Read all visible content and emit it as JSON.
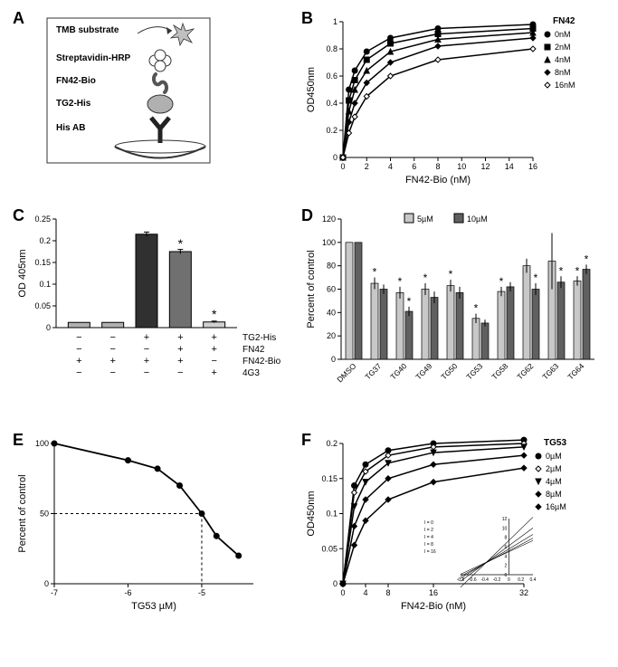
{
  "panels": {
    "A": {
      "label": "A",
      "labels": {
        "tmb": "TMB substrate",
        "strep": "Streptavidin-HRP",
        "fn42": "FN42-Bio",
        "tg2": "TG2-His",
        "his": "His AB"
      },
      "colors": {
        "border": "#333333",
        "fill_light": "#d0d0d0",
        "fill_mid": "#a0a0a0",
        "fill_dark": "#606060"
      }
    },
    "B": {
      "label": "B",
      "type": "line",
      "xlabel": "FN42-Bio (nM)",
      "ylabel": "OD450nm",
      "xlim": [
        0,
        16
      ],
      "ylim": [
        0,
        1.0
      ],
      "xticks": [
        0,
        2,
        4,
        6,
        8,
        10,
        12,
        14,
        16
      ],
      "yticks": [
        0,
        0.2,
        0.4,
        0.6,
        0.8,
        1.0
      ],
      "legend_title": "FN42",
      "series": [
        {
          "name": "0nM",
          "marker": "circle",
          "color": "#000000",
          "x": [
            0,
            0.5,
            1,
            2,
            4,
            8,
            16
          ],
          "y": [
            0,
            0.5,
            0.64,
            0.78,
            0.88,
            0.95,
            0.98
          ]
        },
        {
          "name": "2nM",
          "marker": "square",
          "color": "#000000",
          "x": [
            0,
            0.5,
            1,
            2,
            4,
            8,
            16
          ],
          "y": [
            0,
            0.42,
            0.57,
            0.72,
            0.84,
            0.91,
            0.95
          ]
        },
        {
          "name": "4nM",
          "marker": "triangle",
          "color": "#000000",
          "x": [
            0,
            0.5,
            1,
            2,
            4,
            8,
            16
          ],
          "y": [
            0,
            0.34,
            0.5,
            0.64,
            0.78,
            0.87,
            0.92
          ]
        },
        {
          "name": "8nM",
          "marker": "diamond",
          "color": "#000000",
          "x": [
            0,
            0.5,
            1,
            2,
            4,
            8,
            16
          ],
          "y": [
            0,
            0.26,
            0.4,
            0.55,
            0.7,
            0.82,
            0.88
          ]
        },
        {
          "name": "16nM",
          "marker": "diamond-open",
          "color": "#000000",
          "x": [
            0,
            0.5,
            1,
            2,
            4,
            8,
            16
          ],
          "y": [
            0,
            0.18,
            0.3,
            0.45,
            0.6,
            0.72,
            0.8
          ]
        }
      ]
    },
    "C": {
      "label": "C",
      "type": "bar",
      "ylabel": "OD 405nm",
      "ylim": [
        0,
        0.25
      ],
      "yticks": [
        0,
        0.05,
        0.1,
        0.15,
        0.2,
        0.25
      ],
      "bars": [
        {
          "y": 0.012,
          "err": 0,
          "color": "#b0b0b0",
          "star": false
        },
        {
          "y": 0.012,
          "err": 0,
          "color": "#b0b0b0",
          "star": false
        },
        {
          "y": 0.215,
          "err": 0.005,
          "color": "#303030",
          "star": false
        },
        {
          "y": 0.175,
          "err": 0.005,
          "color": "#707070",
          "star": true
        },
        {
          "y": 0.013,
          "err": 0.002,
          "color": "#d0d0d0",
          "star": true
        }
      ],
      "row_labels": [
        "TG2-His",
        "FN42",
        "FN42-Bio",
        "4G3"
      ],
      "matrix": [
        [
          "−",
          "−",
          "+",
          "+",
          "+"
        ],
        [
          "−",
          "−",
          "−",
          "+",
          "+"
        ],
        [
          "+",
          "+",
          "+",
          "+",
          "−"
        ],
        [
          "−",
          "−",
          "−",
          "−",
          "+"
        ]
      ]
    },
    "D": {
      "label": "D",
      "type": "grouped-bar",
      "ylabel": "Percent of control",
      "ylim": [
        0,
        120
      ],
      "yticks": [
        0,
        20,
        40,
        60,
        80,
        100,
        120
      ],
      "categories": [
        "DMSO",
        "TG37",
        "TG40",
        "TG49",
        "TG50",
        "TG53",
        "TG58",
        "TG62",
        "TG63",
        "TG64"
      ],
      "legend": [
        {
          "label": "5µM",
          "color": "#c8c8c8"
        },
        {
          "label": "10µM",
          "color": "#606060"
        }
      ],
      "series5": [
        100,
        65,
        57,
        60,
        63,
        35,
        58,
        80,
        84,
        67
      ],
      "series10": [
        100,
        60,
        41,
        53,
        57,
        31,
        62,
        60,
        66,
        77
      ],
      "err5": [
        0,
        5,
        5,
        5,
        5,
        4,
        4,
        6,
        24,
        4
      ],
      "err10": [
        0,
        4,
        4,
        5,
        5,
        3,
        4,
        5,
        5,
        4
      ],
      "stars5": [
        false,
        true,
        true,
        true,
        true,
        true,
        true,
        false,
        false,
        true
      ],
      "stars10": [
        false,
        false,
        true,
        false,
        false,
        false,
        false,
        true,
        true,
        true
      ]
    },
    "E": {
      "label": "E",
      "type": "line",
      "xlabel": "TG53    µM)",
      "ylabel": "Percent of control",
      "xlim": [
        -7,
        -4.3
      ],
      "ylim": [
        0,
        100
      ],
      "xticks": [
        -7,
        -6,
        -5
      ],
      "yticks": [
        0,
        50,
        100
      ],
      "points_x": [
        -7.0,
        -6.0,
        -5.6,
        -5.3,
        -5.0,
        -4.8,
        -4.5
      ],
      "points_y": [
        100,
        88,
        82,
        70,
        50,
        34,
        20
      ],
      "ic50_x": -5.0,
      "ic50_y": 50,
      "color": "#000000"
    },
    "F": {
      "label": "F",
      "type": "line",
      "xlabel": "FN42-Bio (nM)",
      "ylabel": "OD450nm",
      "xlim": [
        0,
        32
      ],
      "ylim": [
        0,
        0.2
      ],
      "xticks": [
        0,
        4,
        8,
        16,
        32
      ],
      "yticks": [
        0,
        0.05,
        0.1,
        0.15,
        0.2
      ],
      "legend_title": "TG53",
      "series": [
        {
          "name": "0µM",
          "marker": "circle",
          "color": "#000000",
          "x": [
            0,
            2,
            4,
            8,
            16,
            32
          ],
          "y": [
            0,
            0.14,
            0.17,
            0.19,
            0.2,
            0.205
          ]
        },
        {
          "name": "2µM",
          "marker": "diamond-open",
          "color": "#000000",
          "x": [
            0,
            2,
            4,
            8,
            16,
            32
          ],
          "y": [
            0,
            0.13,
            0.16,
            0.183,
            0.195,
            0.2
          ]
        },
        {
          "name": "4µM",
          "marker": "triangle-down",
          "color": "#000000",
          "x": [
            0,
            2,
            4,
            8,
            16,
            32
          ],
          "y": [
            0,
            0.11,
            0.145,
            0.172,
            0.187,
            0.195
          ]
        },
        {
          "name": "8µM",
          "marker": "diamond",
          "color": "#000000",
          "x": [
            0,
            2,
            4,
            8,
            16,
            32
          ],
          "y": [
            0,
            0.082,
            0.12,
            0.15,
            0.17,
            0.183
          ]
        },
        {
          "name": "16µM",
          "marker": "diamond",
          "color": "#000000",
          "x": [
            0,
            2,
            4,
            8,
            16,
            32
          ],
          "y": [
            0,
            0.055,
            0.09,
            0.12,
            0.145,
            0.165
          ]
        }
      ],
      "inset": {
        "xlim": [
          -0.8,
          0.4
        ],
        "ylim": [
          0,
          12
        ],
        "xticks": [
          -0.8,
          -0.6,
          -0.4,
          -0.2,
          0,
          0.2,
          0.4
        ],
        "yticks": [
          0,
          2,
          4,
          6,
          8,
          10,
          12
        ],
        "legend": [
          "I = 0",
          "I = 2",
          "I = 4",
          "I = 8",
          "I = 16"
        ],
        "lines": [
          {
            "m": 6.0,
            "b": 4.9,
            "marker": "circle"
          },
          {
            "m": 6.8,
            "b": 5.1,
            "marker": "circle-open"
          },
          {
            "m": 7.8,
            "b": 5.5,
            "marker": "triangle-down"
          },
          {
            "m": 9.5,
            "b": 6.2,
            "marker": "diamond-open"
          },
          {
            "m": 12.5,
            "b": 7.3,
            "marker": "diamond"
          }
        ]
      }
    }
  },
  "global": {
    "background_color": "#ffffff",
    "axis_color": "#000000",
    "label_fontsize": 11,
    "tick_fontsize": 9,
    "panel_label_fontsize": 18
  }
}
